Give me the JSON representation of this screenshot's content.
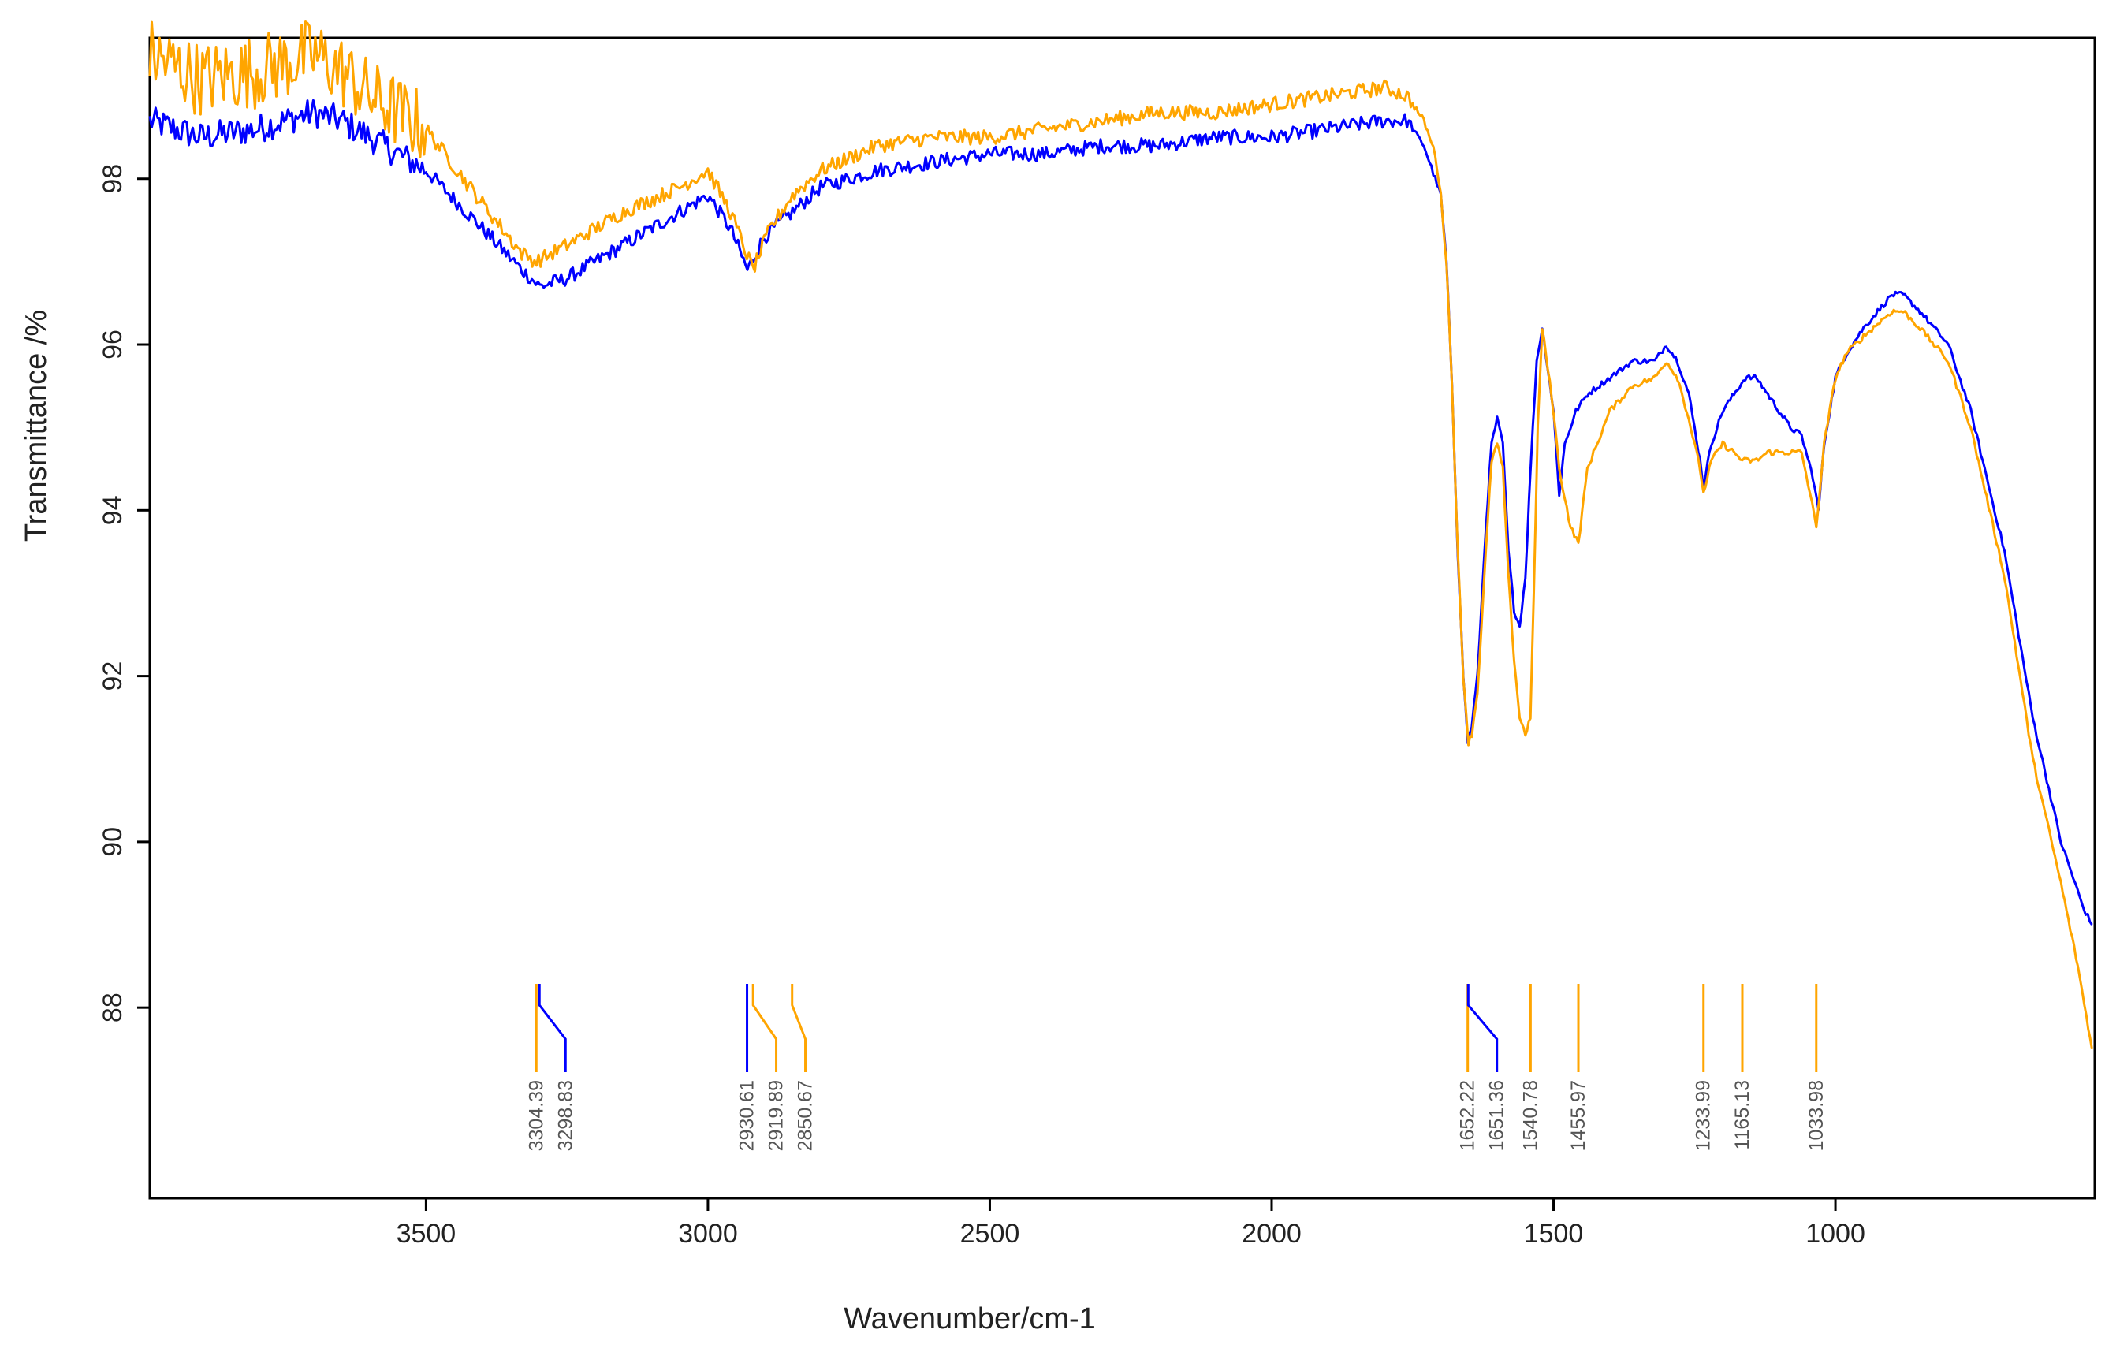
{
  "chart_data": {
    "type": "line",
    "xlabel": "Wavenumber/cm-1",
    "ylabel": "Transmittance /%",
    "xlim": [
      3990,
      540
    ],
    "ylim": [
      85.7,
      99.7
    ],
    "x_ticks": [
      3500,
      3000,
      2500,
      2000,
      1500,
      1000
    ],
    "x_tick_labels": [
      "3500",
      "3000",
      "2500",
      "2000",
      "1500",
      "1000"
    ],
    "y_ticks": [
      88,
      90,
      92,
      94,
      96,
      98
    ],
    "y_tick_labels": [
      "88",
      "90",
      "92",
      "94",
      "96",
      "98"
    ],
    "grid": false,
    "legend": "none",
    "series": [
      {
        "color": "#0000ff",
        "points": [
          [
            3990,
            98.7
          ],
          [
            3900,
            98.5
          ],
          [
            3800,
            98.6
          ],
          [
            3700,
            98.8
          ],
          [
            3650,
            98.7
          ],
          [
            3600,
            98.5
          ],
          [
            3500,
            98.1
          ],
          [
            3400,
            97.4
          ],
          [
            3330,
            96.9
          ],
          [
            3298,
            96.7
          ],
          [
            3250,
            96.8
          ],
          [
            3150,
            97.2
          ],
          [
            3050,
            97.6
          ],
          [
            3000,
            97.8
          ],
          [
            2960,
            97.4
          ],
          [
            2930,
            96.9
          ],
          [
            2900,
            97.3
          ],
          [
            2850,
            97.6
          ],
          [
            2800,
            97.9
          ],
          [
            2700,
            98.1
          ],
          [
            2600,
            98.2
          ],
          [
            2500,
            98.3
          ],
          [
            2400,
            98.3
          ],
          [
            2300,
            98.4
          ],
          [
            2200,
            98.4
          ],
          [
            2100,
            98.5
          ],
          [
            2000,
            98.5
          ],
          [
            1900,
            98.6
          ],
          [
            1800,
            98.7
          ],
          [
            1760,
            98.7
          ],
          [
            1730,
            98.4
          ],
          [
            1700,
            97.8
          ],
          [
            1690,
            97.0
          ],
          [
            1680,
            95.5
          ],
          [
            1670,
            93.5
          ],
          [
            1660,
            92.0
          ],
          [
            1652,
            91.2
          ],
          [
            1645,
            91.4
          ],
          [
            1635,
            92.0
          ],
          [
            1620,
            93.8
          ],
          [
            1610,
            94.8
          ],
          [
            1600,
            95.1
          ],
          [
            1590,
            94.8
          ],
          [
            1580,
            93.5
          ],
          [
            1570,
            92.8
          ],
          [
            1560,
            92.6
          ],
          [
            1550,
            93.2
          ],
          [
            1540,
            94.6
          ],
          [
            1530,
            95.8
          ],
          [
            1520,
            96.2
          ],
          [
            1500,
            95.2
          ],
          [
            1490,
            94.2
          ],
          [
            1480,
            94.8
          ],
          [
            1460,
            95.2
          ],
          [
            1440,
            95.4
          ],
          [
            1400,
            95.6
          ],
          [
            1360,
            95.8
          ],
          [
            1320,
            95.8
          ],
          [
            1300,
            96.0
          ],
          [
            1280,
            95.8
          ],
          [
            1260,
            95.4
          ],
          [
            1240,
            94.6
          ],
          [
            1234,
            94.3
          ],
          [
            1220,
            94.8
          ],
          [
            1200,
            95.2
          ],
          [
            1180,
            95.4
          ],
          [
            1160,
            95.6
          ],
          [
            1140,
            95.6
          ],
          [
            1120,
            95.4
          ],
          [
            1100,
            95.2
          ],
          [
            1080,
            95.0
          ],
          [
            1060,
            94.9
          ],
          [
            1040,
            94.4
          ],
          [
            1030,
            94.0
          ],
          [
            1020,
            94.8
          ],
          [
            1000,
            95.6
          ],
          [
            980,
            95.9
          ],
          [
            950,
            96.2
          ],
          [
            900,
            96.6
          ],
          [
            880,
            96.6
          ],
          [
            850,
            96.4
          ],
          [
            800,
            96.0
          ],
          [
            760,
            95.2
          ],
          [
            700,
            93.5
          ],
          [
            650,
            91.5
          ],
          [
            600,
            90.0
          ],
          [
            560,
            89.2
          ],
          [
            545,
            89.0
          ]
        ]
      },
      {
        "color": "#ffa500",
        "points": [
          [
            3990,
            99.5
          ],
          [
            3900,
            99.2
          ],
          [
            3800,
            99.3
          ],
          [
            3700,
            99.5
          ],
          [
            3650,
            99.3
          ],
          [
            3600,
            99.0
          ],
          [
            3500,
            98.6
          ],
          [
            3400,
            97.7
          ],
          [
            3330,
            97.1
          ],
          [
            3304,
            97.0
          ],
          [
            3250,
            97.2
          ],
          [
            3150,
            97.6
          ],
          [
            3050,
            97.9
          ],
          [
            3000,
            98.1
          ],
          [
            2960,
            97.6
          ],
          [
            2920,
            96.9
          ],
          [
            2890,
            97.4
          ],
          [
            2850,
            97.8
          ],
          [
            2800,
            98.1
          ],
          [
            2700,
            98.4
          ],
          [
            2600,
            98.5
          ],
          [
            2500,
            98.5
          ],
          [
            2400,
            98.6
          ],
          [
            2300,
            98.7
          ],
          [
            2200,
            98.8
          ],
          [
            2100,
            98.8
          ],
          [
            2000,
            98.9
          ],
          [
            1900,
            99.0
          ],
          [
            1800,
            99.1
          ],
          [
            1760,
            99.0
          ],
          [
            1730,
            98.7
          ],
          [
            1710,
            98.3
          ],
          [
            1700,
            97.8
          ],
          [
            1690,
            97.0
          ],
          [
            1680,
            95.5
          ],
          [
            1670,
            93.5
          ],
          [
            1660,
            92.0
          ],
          [
            1651,
            91.2
          ],
          [
            1645,
            91.3
          ],
          [
            1635,
            91.8
          ],
          [
            1620,
            93.5
          ],
          [
            1610,
            94.6
          ],
          [
            1600,
            94.8
          ],
          [
            1590,
            94.5
          ],
          [
            1580,
            93.2
          ],
          [
            1570,
            92.2
          ],
          [
            1560,
            91.5
          ],
          [
            1550,
            91.3
          ],
          [
            1541,
            91.5
          ],
          [
            1535,
            93.0
          ],
          [
            1528,
            95.0
          ],
          [
            1520,
            96.2
          ],
          [
            1500,
            95.2
          ],
          [
            1490,
            94.5
          ],
          [
            1470,
            93.8
          ],
          [
            1456,
            93.6
          ],
          [
            1440,
            94.5
          ],
          [
            1400,
            95.2
          ],
          [
            1360,
            95.5
          ],
          [
            1320,
            95.6
          ],
          [
            1300,
            95.8
          ],
          [
            1280,
            95.6
          ],
          [
            1260,
            95.1
          ],
          [
            1240,
            94.5
          ],
          [
            1234,
            94.2
          ],
          [
            1220,
            94.6
          ],
          [
            1200,
            94.8
          ],
          [
            1180,
            94.7
          ],
          [
            1165,
            94.6
          ],
          [
            1140,
            94.6
          ],
          [
            1120,
            94.7
          ],
          [
            1100,
            94.7
          ],
          [
            1080,
            94.7
          ],
          [
            1060,
            94.7
          ],
          [
            1045,
            94.2
          ],
          [
            1034,
            93.8
          ],
          [
            1020,
            94.8
          ],
          [
            1000,
            95.6
          ],
          [
            980,
            95.9
          ],
          [
            950,
            96.1
          ],
          [
            900,
            96.4
          ],
          [
            880,
            96.4
          ],
          [
            850,
            96.2
          ],
          [
            800,
            95.8
          ],
          [
            760,
            95.0
          ],
          [
            700,
            93.2
          ],
          [
            650,
            91.0
          ],
          [
            600,
            89.5
          ],
          [
            570,
            88.5
          ],
          [
            555,
            87.9
          ],
          [
            545,
            87.5
          ]
        ]
      }
    ],
    "peak_markers": [
      {
        "label": "3304.39",
        "x": 3304.39,
        "color": "#ffa500"
      },
      {
        "label": "3298.83",
        "x": 3298.83,
        "color": "#0000ff"
      },
      {
        "label": "2930.61",
        "x": 2930.61,
        "color": "#0000ff"
      },
      {
        "label": "2919.89",
        "x": 2919.89,
        "color": "#ffa500"
      },
      {
        "label": "2850.67",
        "x": 2850.67,
        "color": "#ffa500"
      },
      {
        "label": "1652.22",
        "x": 1652.22,
        "color": "#ffa500"
      },
      {
        "label": "1651.36",
        "x": 1651.36,
        "color": "#0000ff"
      },
      {
        "label": "1540.78",
        "x": 1540.78,
        "color": "#ffa500"
      },
      {
        "label": "1455.97",
        "x": 1455.97,
        "color": "#ffa500"
      },
      {
        "label": "1233.99",
        "x": 1233.99,
        "color": "#ffa500"
      },
      {
        "label": "1165.13",
        "x": 1165.13,
        "color": "#ffa500"
      },
      {
        "label": "1033.98",
        "x": 1033.98,
        "color": "#ffa500"
      }
    ]
  }
}
